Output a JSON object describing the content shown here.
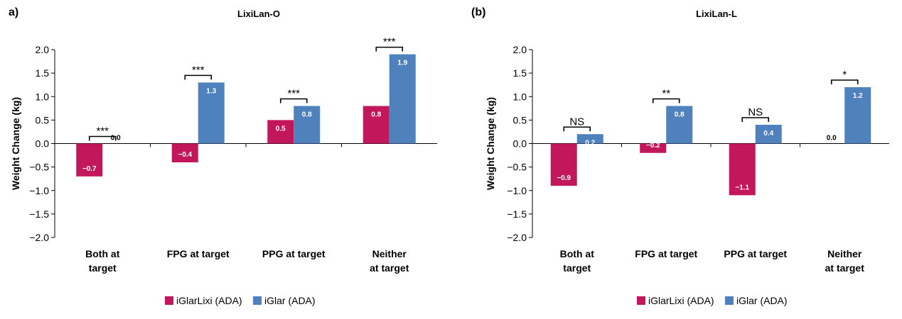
{
  "figure": {
    "legend": {
      "items": [
        {
          "label": "iGlarLixi (ADA)",
          "color": "#c2185b"
        },
        {
          "label": "iGlar (ADA)",
          "color": "#4f81bd"
        }
      ]
    }
  },
  "chart_data": [
    {
      "type": "bar",
      "panel_label": "a)",
      "title": "LixiLan-O",
      "ylabel": "Weight Change (kg)",
      "xlabel": "",
      "ylim": [
        -2.0,
        2.0
      ],
      "yticks": [
        "2.0",
        "1.5",
        "1.0",
        "0.5",
        "0.0",
        "−0.5",
        "−1.0",
        "−1.5",
        "−2.0"
      ],
      "ytick_values": [
        2.0,
        1.5,
        1.0,
        0.5,
        0.0,
        -0.5,
        -1.0,
        -1.5,
        -2.0
      ],
      "categories": [
        [
          "Both at",
          "target"
        ],
        [
          "FPG at target"
        ],
        [
          "PPG at target"
        ],
        [
          "Neither",
          "at target"
        ]
      ],
      "series": [
        {
          "name": "iGlarLixi (ADA)",
          "color": "#c2185b",
          "values": [
            -0.7,
            -0.4,
            0.5,
            0.8
          ],
          "labels": [
            "−0.7",
            "−0.4",
            "0.5",
            "0.8"
          ]
        },
        {
          "name": "iGlar (ADA)",
          "color": "#4f81bd",
          "values": [
            0.0,
            1.3,
            0.8,
            1.9
          ],
          "labels": [
            "0.0",
            "1.3",
            "0.8",
            "1.9"
          ]
        }
      ],
      "significance": [
        "***",
        "***",
        "***",
        "***"
      ],
      "grid": false,
      "legend_position": "bottom"
    },
    {
      "type": "bar",
      "panel_label": "(b)",
      "title": "LixiLan-L",
      "ylabel": "Weight Change (kg)",
      "xlabel": "",
      "ylim": [
        -2.0,
        2.0
      ],
      "yticks": [
        "2.0",
        "1.5",
        "1.0",
        "0.5",
        "0.0",
        "−0.5",
        "−1.0",
        "−1.5",
        "−2.0"
      ],
      "ytick_values": [
        2.0,
        1.5,
        1.0,
        0.5,
        0.0,
        -0.5,
        -1.0,
        -1.5,
        -2.0
      ],
      "categories": [
        [
          "Both at",
          "target"
        ],
        [
          "FPG at target"
        ],
        [
          "PPG at target"
        ],
        [
          "Neither",
          "at target"
        ]
      ],
      "series": [
        {
          "name": "iGlarLixi (ADA)",
          "color": "#c2185b",
          "values": [
            -0.9,
            -0.2,
            -1.1,
            0.0
          ],
          "labels": [
            "−0.9",
            "−0.2",
            "−1.1",
            "0.0"
          ]
        },
        {
          "name": "iGlar (ADA)",
          "color": "#4f81bd",
          "values": [
            0.2,
            0.8,
            0.4,
            1.2
          ],
          "labels": [
            "0.2",
            "0.8",
            "0.4",
            "1.2"
          ]
        }
      ],
      "significance": [
        "NS",
        "**",
        "NS",
        "*"
      ],
      "grid": false,
      "legend_position": "bottom"
    }
  ]
}
